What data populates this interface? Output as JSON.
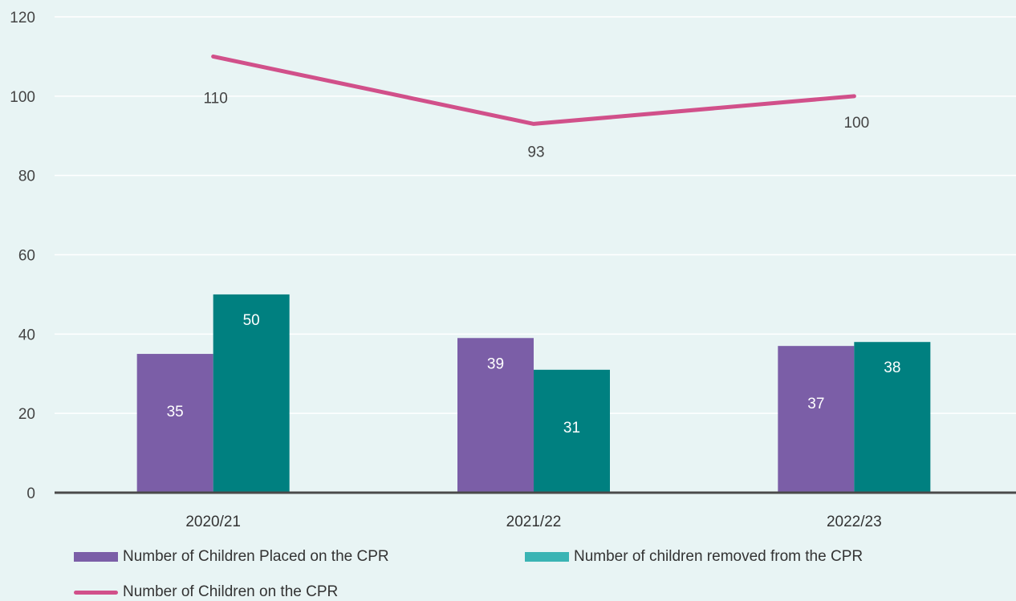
{
  "chart_data": {
    "type": "bar",
    "categories": [
      "2020/21",
      "2021/22",
      "2022/23"
    ],
    "ylim": [
      0,
      120
    ],
    "yticks": [
      0,
      20,
      40,
      60,
      80,
      100,
      120
    ],
    "grid": true,
    "legend_position": "bottom",
    "series": [
      {
        "name": "Number of Children Placed on the CPR",
        "type": "bar",
        "color": "#7b5ea7",
        "values": [
          35,
          39,
          37
        ]
      },
      {
        "name": "Number of children removed from the CPR",
        "type": "bar",
        "color": "#008080",
        "values": [
          50,
          31,
          38
        ]
      },
      {
        "name": "Number of Children on the CPR",
        "type": "line",
        "color": "#d1508a",
        "values": [
          110,
          93,
          100
        ]
      }
    ]
  },
  "legend": {
    "placed_label": "Number of Children Placed on the CPR",
    "removed_label": "Number of children removed from the CPR",
    "on_label": "Number of Children on the CPR"
  }
}
